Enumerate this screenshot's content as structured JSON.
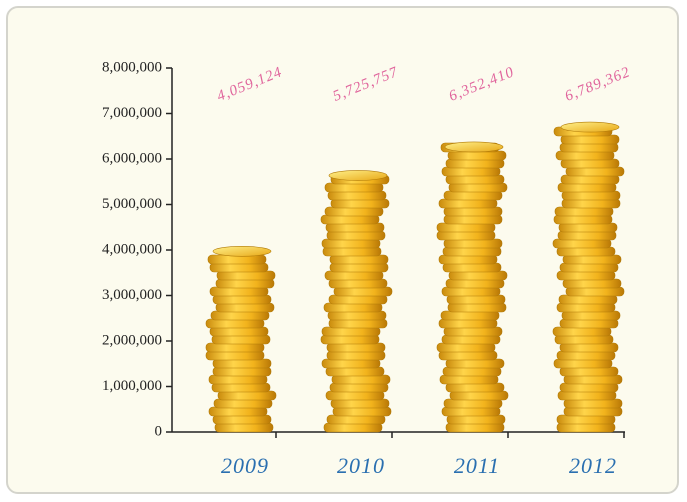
{
  "chart_data": {
    "type": "bar",
    "categories": [
      "2009",
      "2010",
      "2011",
      "2012"
    ],
    "values": [
      4059124,
      5725757,
      6352410,
      6789362
    ],
    "value_labels": [
      "4,059,124",
      "5,725,757",
      "6,352,410",
      "6,789,362"
    ],
    "color": "#f2b31c",
    "ylim": [
      0,
      8000000
    ],
    "yticks": [
      0,
      {
        "value": 1000000,
        "label": "1,000,000"
      },
      {
        "value": 2000000,
        "label": "2,000,000"
      },
      {
        "value": 3000000,
        "label": "3,000,000"
      },
      {
        "value": 4000000,
        "label": "4,000,000"
      },
      {
        "value": 5000000,
        "label": "5,000,000"
      },
      {
        "value": 6000000,
        "label": "6,000,000"
      },
      {
        "value": 7000000,
        "label": "7,000,000"
      },
      {
        "value": 8000000,
        "label": "8,000,000"
      }
    ],
    "grid": false
  }
}
